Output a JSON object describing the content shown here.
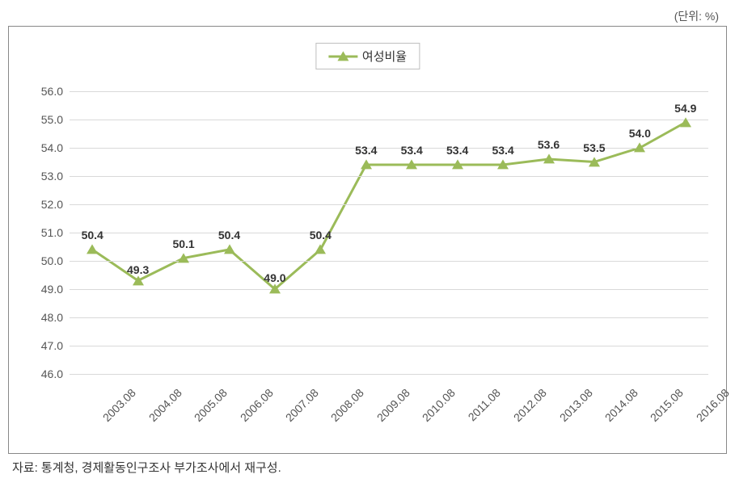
{
  "chart": {
    "type": "line",
    "unit_label": "(단위: %)",
    "legend_label": "여성비율",
    "series_color": "#9bbb59",
    "line_width": 3,
    "marker_shape": "triangle",
    "marker_size": 12,
    "background_color": "#ffffff",
    "grid_color": "#d9d9d9",
    "border_color": "#888888",
    "text_color": "#555555",
    "label_fontsize": 14,
    "data_label_fontsize": 14,
    "ylim": [
      46.0,
      56.0
    ],
    "ytick_step": 1.0,
    "yticks": [
      "46.0",
      "47.0",
      "48.0",
      "49.0",
      "50.0",
      "51.0",
      "52.0",
      "53.0",
      "54.0",
      "55.0",
      "56.0"
    ],
    "categories": [
      "2003.08",
      "2004.08",
      "2005.08",
      "2006.08",
      "2007.08",
      "2008.08",
      "2009.08",
      "2010.08",
      "2011.08",
      "2012.08",
      "2013.08",
      "2014.08",
      "2015.08",
      "2016.08"
    ],
    "values": [
      50.4,
      49.3,
      50.1,
      50.4,
      49.0,
      50.4,
      53.4,
      53.4,
      53.4,
      53.4,
      53.6,
      53.5,
      54.0,
      54.9
    ],
    "value_labels": [
      "50.4",
      "49.3",
      "50.1",
      "50.4",
      "49.0",
      "50.4",
      "53.4",
      "53.4",
      "53.4",
      "53.4",
      "53.6",
      "53.5",
      "54.0",
      "54.9"
    ],
    "x_label_rotation": -45
  },
  "source_note": "자료: 통계청, 경제활동인구조사 부가조사에서 재구성."
}
